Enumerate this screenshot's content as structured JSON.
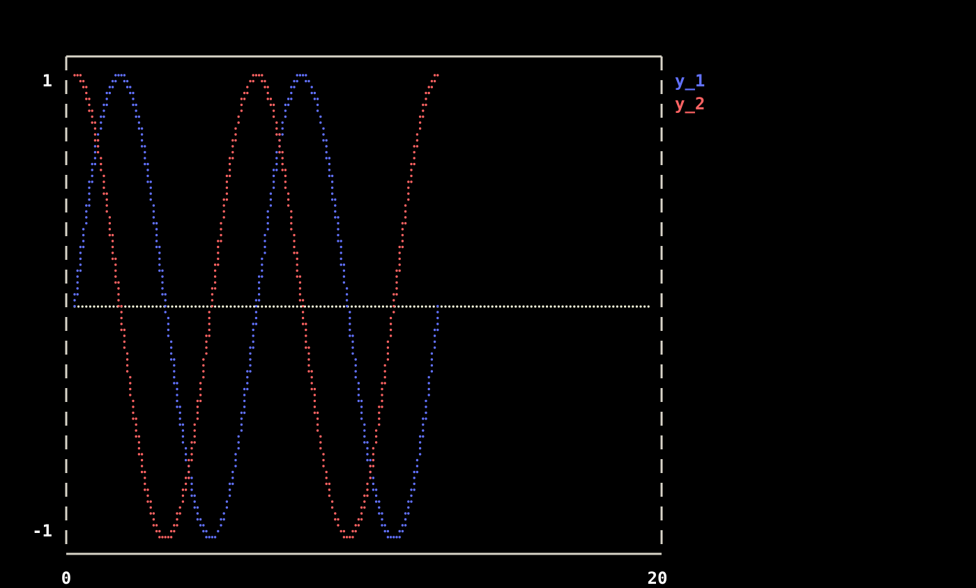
{
  "chart_data": {
    "type": "scatter",
    "title": "",
    "xlabel": "",
    "ylabel": "",
    "xlim": [
      0,
      20
    ],
    "ylim": [
      -1,
      1
    ],
    "x_ticks": [
      "0",
      "20"
    ],
    "y_ticks": [
      "1",
      "-1"
    ],
    "legend_position": "top-right",
    "grid": false,
    "x_domain": [
      0,
      12.566
    ],
    "series": [
      {
        "name": "y_1",
        "function": "sin(x)",
        "color": "#6272ff"
      },
      {
        "name": "y_2",
        "function": "cos(x)",
        "color": "#ff6363"
      }
    ],
    "reference_line": {
      "y": 0,
      "color": "#ffffe0"
    },
    "axis_color": "#d8d4c8"
  }
}
